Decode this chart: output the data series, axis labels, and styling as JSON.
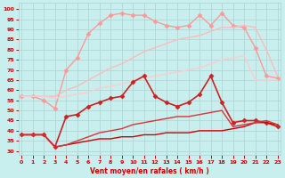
{
  "x": [
    0,
    1,
    2,
    3,
    4,
    5,
    6,
    7,
    8,
    9,
    10,
    11,
    12,
    13,
    14,
    15,
    16,
    17,
    18,
    19,
    20,
    21,
    22,
    23
  ],
  "background_color": "#c8eeee",
  "grid_color": "#aad4d4",
  "xlabel": "Vent moyen/en rafales ( km/h )",
  "xlabel_color": "#cc0000",
  "yticks": [
    30,
    35,
    40,
    45,
    50,
    55,
    60,
    65,
    70,
    75,
    80,
    85,
    90,
    95,
    100
  ],
  "ylim": [
    28,
    103
  ],
  "xlim": [
    -0.3,
    23.3
  ],
  "lines": [
    {
      "y": [
        57,
        57,
        55,
        51,
        70,
        76,
        88,
        93,
        97,
        98,
        97,
        97,
        94,
        92,
        91,
        92,
        97,
        92,
        98,
        92,
        91,
        81,
        67,
        66
      ],
      "color": "#ff9999",
      "lw": 1.0,
      "marker": "D",
      "ms": 2.5,
      "alpha": 1.0
    },
    {
      "y": [
        57,
        57,
        57,
        57,
        60,
        62,
        65,
        68,
        71,
        73,
        76,
        79,
        81,
        83,
        85,
        86,
        87,
        89,
        91,
        91,
        92,
        91,
        80,
        67
      ],
      "color": "#ffbbbb",
      "lw": 1.0,
      "marker": null,
      "ms": 0,
      "alpha": 1.0
    },
    {
      "y": [
        57,
        57,
        57,
        56,
        57,
        58,
        59,
        61,
        62,
        63,
        65,
        66,
        67,
        68,
        69,
        70,
        71,
        73,
        75,
        76,
        77,
        65,
        65,
        65
      ],
      "color": "#ffcccc",
      "lw": 1.0,
      "marker": null,
      "ms": 0,
      "alpha": 1.0
    },
    {
      "y": [
        38,
        38,
        38,
        32,
        47,
        48,
        52,
        54,
        56,
        57,
        64,
        67,
        57,
        54,
        52,
        54,
        58,
        67,
        54,
        44,
        45,
        45,
        44,
        42
      ],
      "color": "#cc2222",
      "lw": 1.2,
      "marker": "D",
      "ms": 2.5,
      "alpha": 1.0
    },
    {
      "y": [
        38,
        38,
        38,
        32,
        33,
        34,
        35,
        36,
        36,
        37,
        37,
        38,
        38,
        39,
        39,
        39,
        40,
        40,
        40,
        41,
        42,
        44,
        44,
        43
      ],
      "color": "#cc0000",
      "lw": 1.0,
      "marker": null,
      "ms": 0,
      "alpha": 1.0
    },
    {
      "y": [
        38,
        38,
        38,
        32,
        33,
        35,
        37,
        39,
        40,
        41,
        43,
        44,
        45,
        46,
        47,
        47,
        48,
        49,
        50,
        42,
        43,
        44,
        45,
        43
      ],
      "color": "#dd3333",
      "lw": 1.0,
      "marker": null,
      "ms": 0,
      "alpha": 1.0
    }
  ]
}
